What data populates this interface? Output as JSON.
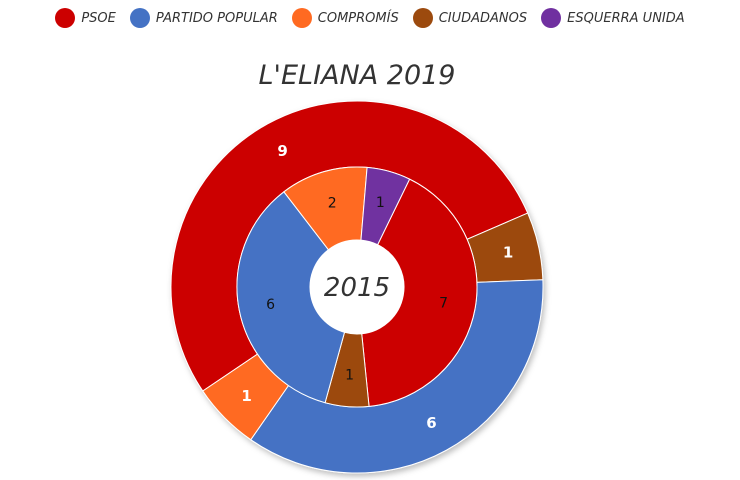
{
  "chart_data": {
    "type": "pie",
    "subtype": "nested-donut",
    "title": "L'ELIANA 2019",
    "center_label": "2015",
    "legend_position": "top",
    "legend": [
      {
        "name": "PSOE",
        "color": "#cc0000"
      },
      {
        "name": "PARTIDO POPULAR",
        "color": "#4472c4"
      },
      {
        "name": "COMPROMÍS",
        "color": "#ff6a21"
      },
      {
        "name": "CIUDADANOS",
        "color": "#9c4a0e"
      },
      {
        "name": "ESQUERRA UNIDA",
        "color": "#7030a0"
      }
    ],
    "rings": [
      {
        "ring": "outer",
        "year": "2019",
        "slices": [
          {
            "name": "PSOE",
            "value": 9,
            "label": "9"
          },
          {
            "name": "CIUDADANOS",
            "value": 1,
            "label": "1"
          },
          {
            "name": "PARTIDO POPULAR",
            "value": 6,
            "label": "6"
          },
          {
            "name": "COMPROMÍS",
            "value": 1,
            "label": "1"
          }
        ]
      },
      {
        "ring": "inner",
        "year": "2015",
        "slices": [
          {
            "name": "PSOE",
            "value": 7,
            "label": "7"
          },
          {
            "name": "CIUDADANOS",
            "value": 1,
            "label": "1"
          },
          {
            "name": "PARTIDO POPULAR",
            "value": 6,
            "label": "6"
          },
          {
            "name": "COMPROMÍS",
            "value": 2,
            "label": "2"
          },
          {
            "name": "ESQUERRA UNIDA",
            "value": 1,
            "label": "1"
          }
        ]
      }
    ]
  }
}
